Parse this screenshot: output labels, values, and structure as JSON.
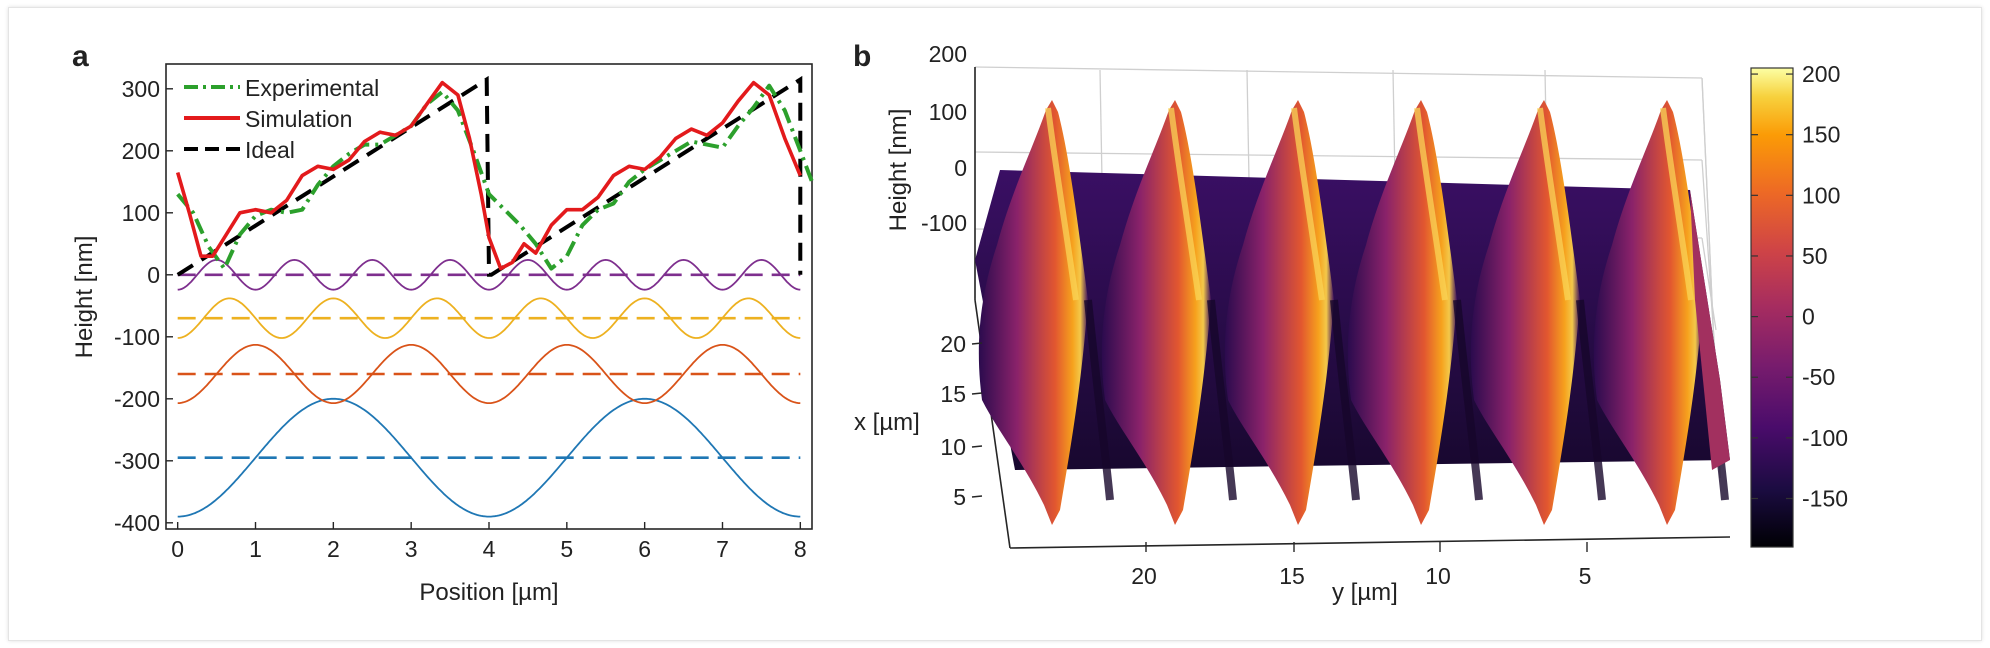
{
  "chart_data": [
    {
      "panel": "a",
      "type": "line",
      "xlabel": "Position [µm]",
      "ylabel": "Height [nm]",
      "xlim": [
        -0.15,
        8.15
      ],
      "ylim": [
        -410,
        340
      ],
      "xticks": [
        0,
        1,
        2,
        3,
        4,
        5,
        6,
        7,
        8
      ],
      "yticks": [
        -400,
        -300,
        -200,
        -100,
        0,
        100,
        200,
        300
      ],
      "legend_position": "top-left",
      "legend": [
        "Experimental",
        "Simulation",
        "Ideal"
      ],
      "series": [
        {
          "name": "Experimental",
          "color": "#2ca02c",
          "style": "dash-dot",
          "x": [
            0,
            0.2,
            0.4,
            0.6,
            0.8,
            1.0,
            1.2,
            1.4,
            1.6,
            1.8,
            2.0,
            2.2,
            2.4,
            2.6,
            2.8,
            3.0,
            3.2,
            3.4,
            3.6,
            3.8,
            4.0,
            4.2,
            4.4,
            4.6,
            4.8,
            5.0,
            5.2,
            5.4,
            5.6,
            5.8,
            6.0,
            6.2,
            6.4,
            6.6,
            6.8,
            7.0,
            7.2,
            7.4,
            7.6,
            7.8,
            8.0,
            8.15
          ],
          "y": [
            130,
            100,
            45,
            10,
            65,
            95,
            105,
            100,
            105,
            145,
            175,
            195,
            210,
            210,
            225,
            240,
            275,
            295,
            265,
            200,
            130,
            105,
            80,
            50,
            10,
            30,
            80,
            105,
            115,
            150,
            170,
            185,
            200,
            215,
            210,
            205,
            240,
            270,
            305,
            265,
            200,
            150
          ]
        },
        {
          "name": "Simulation",
          "color": "#e31a1c",
          "style": "solid",
          "x": [
            0,
            0.15,
            0.3,
            0.45,
            0.6,
            0.8,
            1.0,
            1.2,
            1.4,
            1.6,
            1.8,
            2.0,
            2.2,
            2.4,
            2.6,
            2.8,
            3.0,
            3.2,
            3.4,
            3.6,
            3.75,
            3.9,
            4.0,
            4.15,
            4.3,
            4.45,
            4.6,
            4.8,
            5.0,
            5.2,
            5.4,
            5.6,
            5.8,
            6.0,
            6.2,
            6.4,
            6.6,
            6.8,
            7.0,
            7.2,
            7.4,
            7.6,
            7.8,
            8.0
          ],
          "y": [
            165,
            100,
            30,
            30,
            60,
            100,
            105,
            100,
            120,
            160,
            175,
            170,
            185,
            215,
            230,
            225,
            240,
            275,
            310,
            290,
            220,
            130,
            60,
            10,
            20,
            50,
            35,
            80,
            105,
            105,
            125,
            160,
            175,
            170,
            190,
            220,
            235,
            225,
            245,
            280,
            310,
            290,
            220,
            160
          ]
        },
        {
          "name": "Ideal",
          "color": "#000000",
          "style": "dash",
          "x": [
            0,
            3.97,
            4.0,
            4.03,
            8.0,
            8.0
          ],
          "y": [
            0,
            315,
            0,
            0,
            315,
            0
          ]
        },
        {
          "color": "#1f77b4",
          "style": "solid",
          "offset": -295,
          "amplitude": 95,
          "period": 4,
          "phase": "-cos"
        },
        {
          "color": "#d95319",
          "style": "solid",
          "offset": -160,
          "amplitude": 47,
          "period": 2,
          "phase": "-cos"
        },
        {
          "color": "#edb120",
          "style": "solid",
          "offset": -70,
          "amplitude": 32,
          "period": 1.333,
          "phase": "-cos"
        },
        {
          "color": "#7e2f8e",
          "style": "solid",
          "offset": 0,
          "amplitude": 24,
          "period": 1,
          "phase": "-cos"
        }
      ]
    },
    {
      "panel": "b",
      "type": "surface",
      "xlabel": "y [µm]",
      "ylabel": "x [µm]",
      "zlabel": "Height [nm]",
      "y_ticks": [
        "20",
        "15",
        "10",
        "5"
      ],
      "x_ticks": [
        "20",
        "15",
        "10",
        "5"
      ],
      "z_ticks": [
        "200",
        "100",
        "0",
        "-100"
      ],
      "peaks": 6,
      "colorbar": {
        "ticks": [
          "200",
          "150",
          "100",
          "50",
          "0",
          "-50",
          "-100",
          "-150"
        ],
        "min": -190,
        "max": 205,
        "colormap": "inferno"
      }
    }
  ]
}
